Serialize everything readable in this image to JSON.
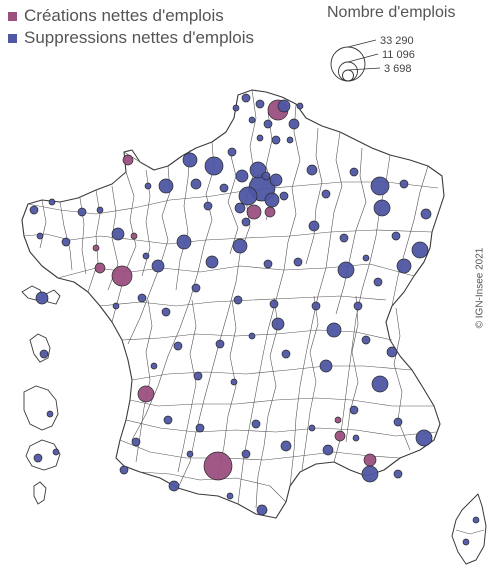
{
  "legend": {
    "categories": [
      {
        "label": "Créations nettes d'emplois",
        "color": "#9b4f7f"
      },
      {
        "label": "Suppressions nettes d'emplois",
        "color": "#4f56a4"
      }
    ],
    "size_title": "Nombre d'emplois",
    "size_values": [
      "33 290",
      "11 096",
      "3 698"
    ]
  },
  "copyright": "© IGN-Insee 2021",
  "colors": {
    "creation": "#9b4f7f",
    "suppression": "#4f56a4",
    "border": "#3a3a3a",
    "land": "#ffffff"
  }
}
